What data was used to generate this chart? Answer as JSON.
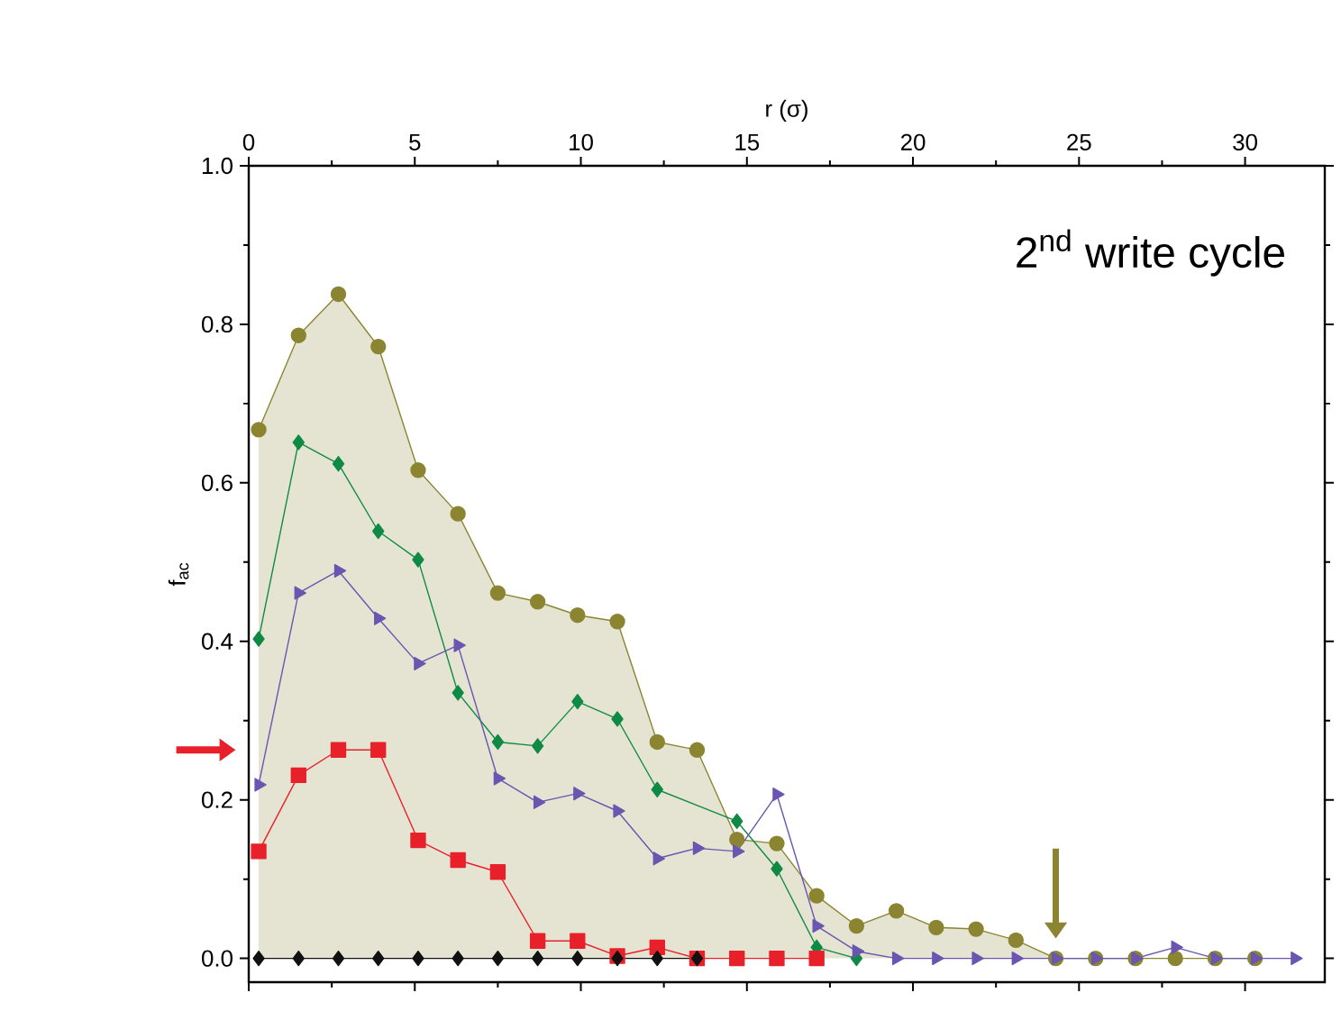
{
  "chart_data": {
    "type": "line",
    "xlabel": "r (σ)",
    "ylabel": "f$_{ac}$",
    "annotations": [
      "2$^{nd}$ write cycle"
    ],
    "x": [
      0.3,
      1.5,
      2.7,
      3.9,
      5.1,
      6.3,
      7.5,
      8.7,
      9.9,
      11.1,
      12.3,
      13.5,
      14.7,
      15.9,
      17.1,
      18.3,
      19.5,
      20.7,
      21.9,
      23.1,
      24.3,
      25.5,
      26.7,
      27.9,
      29.1,
      30.3,
      31.5
    ],
    "xlim": [
      0,
      32.4
    ],
    "xticks": [
      0,
      5,
      10,
      15,
      20,
      25,
      30
    ],
    "ylim": [
      -0.03,
      1.0
    ],
    "yticks": [
      {
        "value": 0,
        "label": "0.0"
      },
      {
        "value": 0.2,
        "label": "0.2"
      },
      {
        "value": 0.4,
        "label": "0.4"
      },
      {
        "value": 0.6,
        "label": "0.6"
      },
      {
        "value": 0.8,
        "label": "0.8"
      },
      {
        "value": 1,
        "label": "1.0"
      }
    ],
    "series": [
      {
        "type": "area",
        "color": "#8b8532",
        "marker": "circle",
        "values": [
          0.667,
          0.786,
          0.838,
          0.772,
          0.616,
          0.561,
          0.461,
          0.45,
          0.433,
          0.425,
          0.273,
          0.263,
          0.15,
          0.145,
          0.079,
          0.041,
          0.06,
          0.039,
          0.037,
          0.023,
          0,
          0,
          0,
          0,
          0,
          0,
          null
        ]
      },
      {
        "color": "#0f8a45",
        "marker": "diamond",
        "values": [
          0.403,
          0.651,
          0.624,
          0.539,
          0.503,
          0.335,
          0.273,
          0.268,
          0.324,
          0.302,
          0.213,
          null,
          0.173,
          0.113,
          0.014,
          0,
          null,
          null,
          null,
          null,
          null,
          null,
          null,
          null,
          null,
          null,
          null
        ]
      },
      {
        "color": "#6a55b0",
        "marker": "triangle",
        "values": [
          0.219,
          0.461,
          0.489,
          0.429,
          0.372,
          0.395,
          0.227,
          0.197,
          0.208,
          0.186,
          0.126,
          0.139,
          0.135,
          0.207,
          0.041,
          0.009,
          0,
          0,
          0,
          0,
          0,
          0,
          0,
          0.014,
          0,
          0,
          0
        ]
      },
      {
        "color": "#e8202a",
        "marker": "square",
        "values": [
          0.135,
          0.231,
          0.263,
          0.263,
          0.149,
          0.124,
          0.109,
          0.022,
          0.022,
          0.003,
          0.014,
          0,
          0,
          0,
          0,
          null,
          null,
          null,
          null,
          null,
          null,
          null,
          null,
          null,
          null,
          null,
          null
        ]
      },
      {
        "color": "#111111",
        "marker": "diamond",
        "values": [
          0,
          0,
          0,
          0,
          0,
          0,
          0,
          0,
          0,
          0,
          0,
          0,
          null,
          null,
          null,
          null,
          null,
          null,
          null,
          null,
          null,
          null,
          null,
          null,
          null,
          null,
          null
        ]
      }
    ]
  }
}
